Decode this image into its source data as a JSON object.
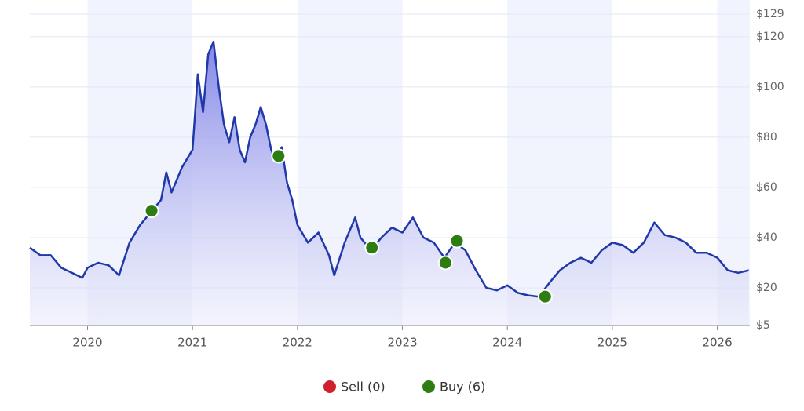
{
  "chart_data": {
    "type": "line",
    "color": "#2038a8",
    "grid": true,
    "x": [
      2019.45,
      2019.55,
      2019.65,
      2019.75,
      2019.85,
      2019.95,
      2020.0,
      2020.1,
      2020.2,
      2020.3,
      2020.4,
      2020.5,
      2020.6,
      2020.7,
      2020.75,
      2020.8,
      2020.9,
      2021.0,
      2021.05,
      2021.1,
      2021.15,
      2021.2,
      2021.25,
      2021.3,
      2021.35,
      2021.4,
      2021.45,
      2021.5,
      2021.55,
      2021.6,
      2021.65,
      2021.7,
      2021.75,
      2021.8,
      2021.85,
      2021.9,
      2021.95,
      2022.0,
      2022.1,
      2022.2,
      2022.3,
      2022.35,
      2022.45,
      2022.55,
      2022.6,
      2022.7,
      2022.8,
      2022.9,
      2023.0,
      2023.1,
      2023.2,
      2023.3,
      2023.4,
      2023.5,
      2023.6,
      2023.7,
      2023.8,
      2023.9,
      2024.0,
      2024.1,
      2024.2,
      2024.3,
      2024.4,
      2024.5,
      2024.6,
      2024.7,
      2024.8,
      2024.9,
      2025.0,
      2025.1,
      2025.2,
      2025.3,
      2025.4,
      2025.5,
      2025.6,
      2025.7,
      2025.8,
      2025.9,
      2026.0,
      2026.1,
      2026.2,
      2026.3
    ],
    "values": [
      36,
      33,
      33,
      28,
      26,
      24,
      28,
      30,
      29,
      25,
      38,
      45,
      50,
      55,
      66,
      58,
      68,
      75,
      105,
      90,
      113,
      118,
      100,
      85,
      78,
      88,
      75,
      70,
      80,
      85,
      92,
      85,
      75,
      70,
      76,
      62,
      55,
      45,
      38,
      42,
      33,
      25,
      38,
      48,
      40,
      35,
      40,
      44,
      42,
      48,
      40,
      38,
      32,
      38,
      35,
      27,
      20,
      19,
      21,
      18,
      17,
      16.5,
      22,
      27,
      30,
      32,
      30,
      35,
      38,
      37,
      34,
      38,
      46,
      41,
      40,
      38,
      34,
      34,
      32,
      27,
      26,
      27
    ],
    "buys": {
      "x": [
        2020.61,
        2021.82,
        2022.71,
        2023.41,
        2023.52,
        2024.36
      ],
      "values": [
        50.7,
        72.5,
        36,
        30,
        38.7,
        16.5
      ],
      "color": "#2e7d12"
    },
    "legend": [
      {
        "label": "Sell (0)",
        "color": "#d0202e"
      },
      {
        "label": "Buy (6)",
        "color": "#2e7d12"
      }
    ],
    "xlim": [
      2019.45,
      2026.31
    ],
    "xticks": [
      2020,
      2021,
      2022,
      2023,
      2024,
      2025,
      2026
    ],
    "ylim": [
      5,
      129
    ],
    "yticks": [
      {
        "value": 5,
        "label": "$5"
      },
      {
        "value": 20,
        "label": "$20"
      },
      {
        "value": 40,
        "label": "$40"
      },
      {
        "value": 60,
        "label": "$60"
      },
      {
        "value": 80,
        "label": "$80"
      },
      {
        "value": 100,
        "label": "$100"
      },
      {
        "value": 120,
        "label": "$120"
      },
      {
        "value": 129,
        "label": "$129"
      }
    ]
  }
}
